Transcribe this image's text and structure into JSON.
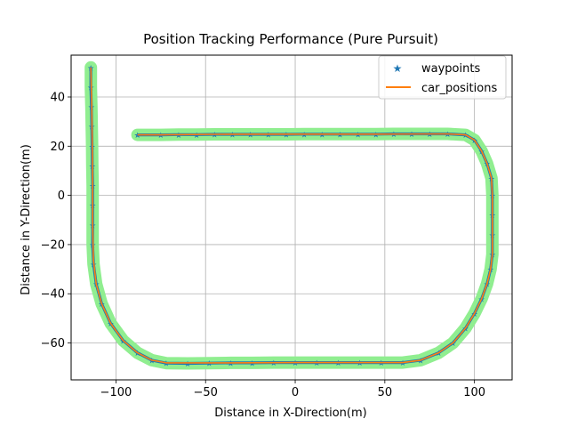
{
  "chart_data": {
    "type": "line",
    "title": "Position Tracking Performance (Pure Pursuit)",
    "xlabel": "Distance in X-Direction(m)",
    "ylabel": "Distance in Y-Direction(m)",
    "xlim": [
      -125,
      121
    ],
    "ylim": [
      -75,
      57
    ],
    "xticks": [
      -100,
      -50,
      0,
      50,
      100
    ],
    "xtick_labels": [
      "−100",
      "−50",
      "0",
      "50",
      "100"
    ],
    "yticks": [
      -60,
      -40,
      -20,
      0,
      20,
      40
    ],
    "ytick_labels": [
      "−60",
      "−40",
      "−20",
      "0",
      "20",
      "40"
    ],
    "grid": true,
    "legend_position": "top-right",
    "colors": {
      "waypoints": "#1f77b4",
      "car_positions": "#ff7f0e",
      "tolerance_band": "#90ee90"
    },
    "series": [
      {
        "name": "waypoints",
        "style": "star-markers",
        "points": [
          [
            -114,
            52
          ],
          [
            -114,
            44
          ],
          [
            -113.7,
            36
          ],
          [
            -113.5,
            28
          ],
          [
            -113.3,
            20
          ],
          [
            -113.2,
            12
          ],
          [
            -113,
            4
          ],
          [
            -113,
            -4
          ],
          [
            -113,
            -12
          ],
          [
            -113,
            -20
          ],
          [
            -112.5,
            -28
          ],
          [
            -111,
            -36
          ],
          [
            -108,
            -44
          ],
          [
            -103,
            -52
          ],
          [
            -96,
            -59
          ],
          [
            -88,
            -64
          ],
          [
            -80,
            -67
          ],
          [
            -72,
            -68.2
          ],
          [
            -60,
            -68.3
          ],
          [
            -48,
            -68.2
          ],
          [
            -36,
            -68.1
          ],
          [
            -24,
            -68.1
          ],
          [
            -12,
            -68
          ],
          [
            0,
            -68
          ],
          [
            12,
            -68
          ],
          [
            24,
            -68
          ],
          [
            36,
            -68
          ],
          [
            48,
            -68
          ],
          [
            60,
            -68
          ],
          [
            70,
            -67
          ],
          [
            80,
            -64
          ],
          [
            88,
            -60
          ],
          [
            95,
            -54
          ],
          [
            100,
            -48
          ],
          [
            104,
            -42
          ],
          [
            107,
            -36
          ],
          [
            109,
            -30
          ],
          [
            110,
            -24
          ],
          [
            110,
            -16
          ],
          [
            110,
            -8
          ],
          [
            110,
            0
          ],
          [
            109.5,
            7
          ],
          [
            107,
            13
          ],
          [
            104,
            18
          ],
          [
            100,
            22.5
          ],
          [
            95,
            24.6
          ],
          [
            85,
            25
          ],
          [
            75,
            25
          ],
          [
            65,
            25
          ],
          [
            55,
            25
          ],
          [
            45,
            24.9
          ],
          [
            35,
            24.9
          ],
          [
            25,
            24.9
          ],
          [
            15,
            24.9
          ],
          [
            5,
            24.9
          ],
          [
            -5,
            24.8
          ],
          [
            -15,
            24.8
          ],
          [
            -25,
            24.8
          ],
          [
            -35,
            24.8
          ],
          [
            -45,
            24.8
          ],
          [
            -55,
            24.7
          ],
          [
            -65,
            24.7
          ],
          [
            -75,
            24.6
          ],
          [
            -88,
            24.6
          ]
        ]
      },
      {
        "name": "car_positions",
        "style": "line",
        "points": [
          [
            -114,
            52
          ],
          [
            -113.5,
            36
          ],
          [
            -113.2,
            20
          ],
          [
            -113,
            4
          ],
          [
            -113,
            -12
          ],
          [
            -112.6,
            -26
          ],
          [
            -111,
            -36
          ],
          [
            -108,
            -44
          ],
          [
            -103,
            -52
          ],
          [
            -96,
            -59
          ],
          [
            -88,
            -64
          ],
          [
            -80,
            -67
          ],
          [
            -72,
            -68.1
          ],
          [
            -36,
            -68.1
          ],
          [
            0,
            -68
          ],
          [
            36,
            -68
          ],
          [
            60,
            -68
          ],
          [
            70,
            -67
          ],
          [
            80,
            -64
          ],
          [
            88,
            -60
          ],
          [
            95,
            -54
          ],
          [
            100,
            -48
          ],
          [
            104,
            -42
          ],
          [
            107,
            -36
          ],
          [
            109,
            -30
          ],
          [
            110,
            -24
          ],
          [
            110,
            0
          ],
          [
            109.5,
            7
          ],
          [
            107,
            13
          ],
          [
            104,
            18
          ],
          [
            100,
            22.5
          ],
          [
            95,
            24.6
          ],
          [
            85,
            25
          ],
          [
            45,
            24.9
          ],
          [
            0,
            24.9
          ],
          [
            -45,
            24.8
          ],
          [
            -75,
            24.6
          ],
          [
            -88,
            24.6
          ]
        ]
      }
    ]
  }
}
